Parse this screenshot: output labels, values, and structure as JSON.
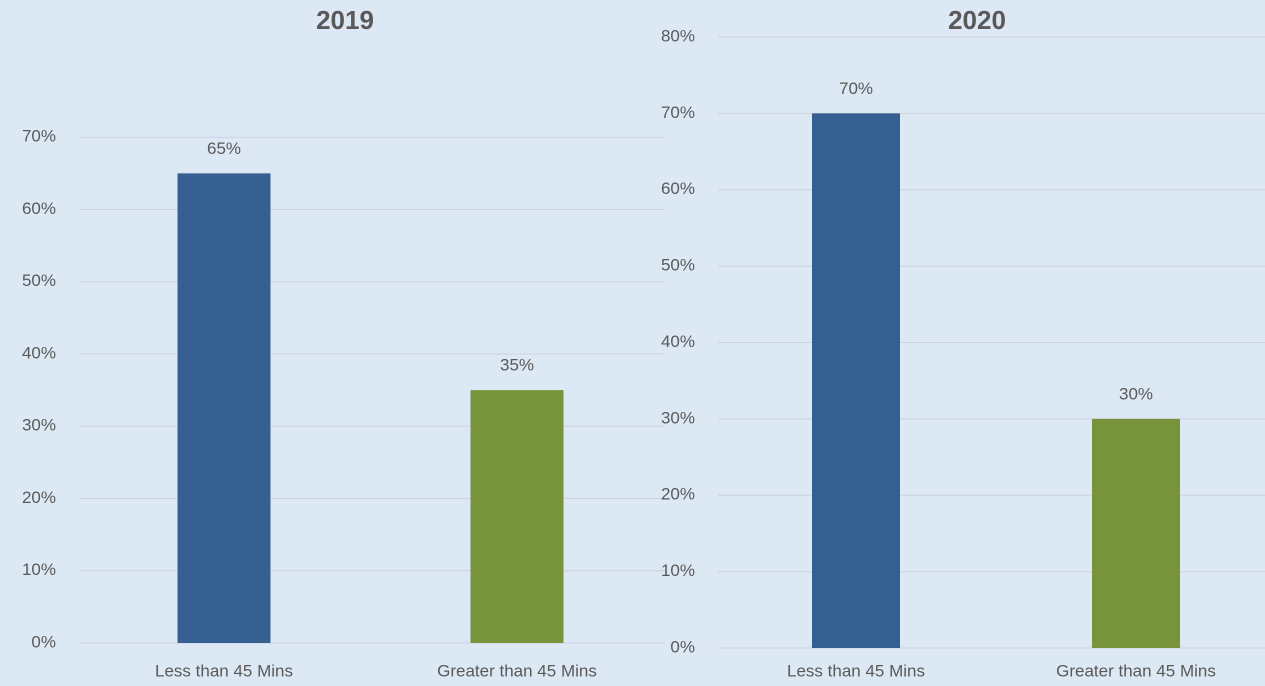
{
  "chart_data": [
    {
      "type": "bar",
      "title": "2019",
      "categories": [
        "Less than 45 Mins",
        "Greater than 45 Mins"
      ],
      "values": [
        65,
        35
      ],
      "value_labels": [
        "65%",
        "35%"
      ],
      "colors": [
        "#365f91",
        "#77933c"
      ],
      "ylim": [
        0,
        80
      ],
      "yticks": [
        {
          "value": 0,
          "label": "0%"
        },
        {
          "value": 10,
          "label": "10%"
        },
        {
          "value": 20,
          "label": "20%"
        },
        {
          "value": 30,
          "label": "30%"
        },
        {
          "value": 40,
          "label": "40%"
        },
        {
          "value": 50,
          "label": "50%"
        },
        {
          "value": 60,
          "label": "60%"
        },
        {
          "value": 70,
          "label": "70%"
        }
      ],
      "grid": true
    },
    {
      "type": "bar",
      "title": "2020",
      "categories": [
        "Less than 45 Mins",
        "Greater than 45 Mins"
      ],
      "values": [
        70,
        30
      ],
      "value_labels": [
        "70%",
        "30%"
      ],
      "colors": [
        "#365f91",
        "#77933c"
      ],
      "ylim": [
        0,
        80
      ],
      "yticks": [
        {
          "value": 0,
          "label": "0%"
        },
        {
          "value": 10,
          "label": "10%"
        },
        {
          "value": 20,
          "label": "20%"
        },
        {
          "value": 30,
          "label": "30%"
        },
        {
          "value": 40,
          "label": "40%"
        },
        {
          "value": 50,
          "label": "50%"
        },
        {
          "value": 60,
          "label": "60%"
        },
        {
          "value": 70,
          "label": "70%"
        },
        {
          "value": 80,
          "label": "80%"
        }
      ],
      "grid": true
    }
  ]
}
